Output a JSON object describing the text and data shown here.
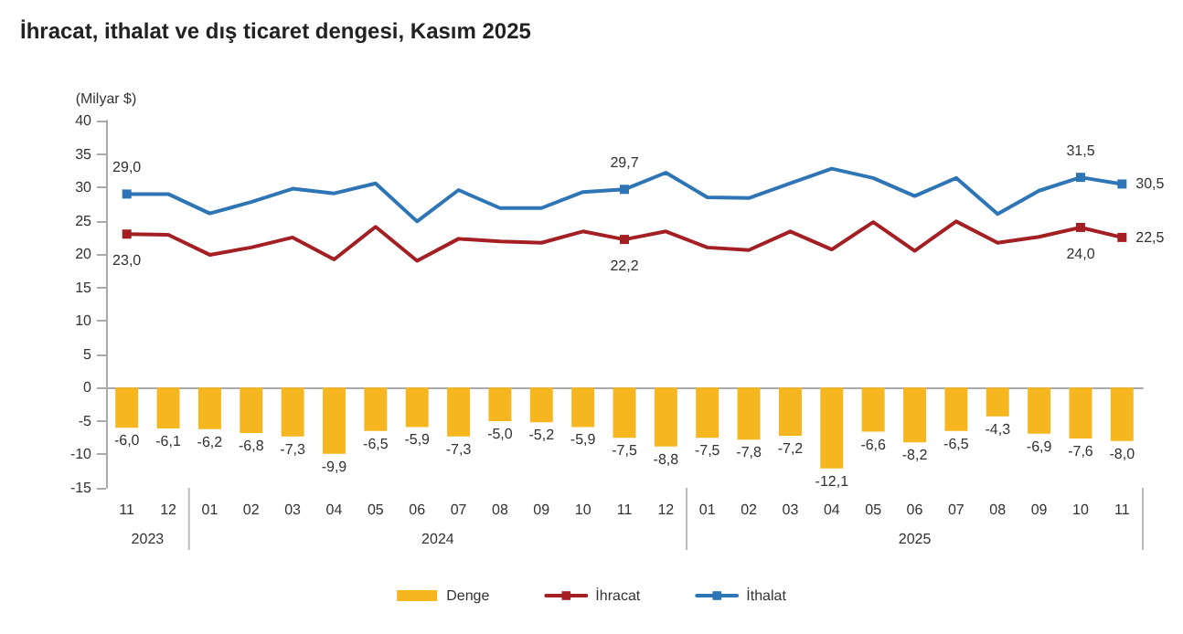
{
  "chart_data": {
    "type": "bar",
    "title": "İhracat, ithalat ve dış ticaret dengesi, Kasım 2025",
    "ylabel": "(Milyar $)",
    "categories": [
      "11",
      "12",
      "01",
      "02",
      "03",
      "04",
      "05",
      "06",
      "07",
      "08",
      "09",
      "10",
      "11",
      "12",
      "01",
      "02",
      "03",
      "04",
      "05",
      "06",
      "07",
      "08",
      "09",
      "10",
      "11"
    ],
    "annotations": [
      "2023",
      "2024",
      "2025"
    ],
    "series": [
      {
        "name": "Denge",
        "color": "#f5b620",
        "values": [
          -6.0,
          -6.1,
          -6.2,
          -6.8,
          -7.3,
          -9.9,
          -6.5,
          -5.9,
          -7.3,
          -5.0,
          -5.2,
          -5.9,
          -7.5,
          -8.8,
          -7.5,
          -7.8,
          -7.2,
          -12.1,
          -6.6,
          -8.2,
          -6.5,
          -4.3,
          -6.9,
          -7.6,
          -8.0
        ],
        "value_labels": [
          "-6,0",
          "-6,1",
          "-6,2",
          "-6,8",
          "-7,3",
          "-9,9",
          "-6,5",
          "-5,9",
          "-7,3",
          "-5,0",
          "-5,2",
          "-5,9",
          "-7,5",
          "-8,8",
          "-7,5",
          "-7,8",
          "-7,2",
          "-12,1",
          "-6,6",
          "-8,2",
          "-6,5",
          "-4,3",
          "-6,9",
          "-7,6",
          "-8,0"
        ]
      },
      {
        "name": "İhracat",
        "type": "line",
        "color": "#a31f24",
        "values": [
          23.0,
          22.9,
          19.9,
          21.0,
          22.5,
          19.2,
          24.1,
          19.0,
          22.3,
          21.9,
          21.7,
          23.4,
          22.2,
          23.4,
          21.0,
          20.6,
          23.4,
          20.7,
          24.8,
          20.5,
          24.9,
          21.7,
          22.6,
          24.0,
          22.5
        ],
        "value_labels": [
          "23,0",
          null,
          null,
          null,
          null,
          null,
          null,
          null,
          null,
          null,
          null,
          null,
          "22,2",
          null,
          null,
          null,
          null,
          null,
          null,
          null,
          null,
          null,
          null,
          "24,0",
          "22,5"
        ]
      },
      {
        "name": "İthalat",
        "type": "line",
        "color": "#2e75b6",
        "values": [
          29.0,
          29.0,
          26.1,
          27.8,
          29.8,
          29.1,
          30.6,
          24.9,
          29.6,
          26.9,
          26.9,
          29.3,
          29.7,
          32.2,
          28.5,
          28.4,
          30.6,
          32.8,
          31.4,
          28.7,
          31.4,
          26.0,
          29.5,
          31.5,
          30.5
        ],
        "value_labels": [
          "29,0",
          null,
          null,
          null,
          null,
          null,
          null,
          null,
          null,
          null,
          null,
          null,
          "29,7",
          null,
          null,
          null,
          null,
          null,
          null,
          null,
          null,
          null,
          null,
          "31,5",
          "30,5"
        ]
      }
    ],
    "ylim": [
      -15,
      40
    ],
    "yticks": [
      -15,
      -10,
      -5,
      0,
      5,
      10,
      15,
      20,
      25,
      30,
      35,
      40
    ],
    "legend": "bottom",
    "line_style": "solid"
  }
}
